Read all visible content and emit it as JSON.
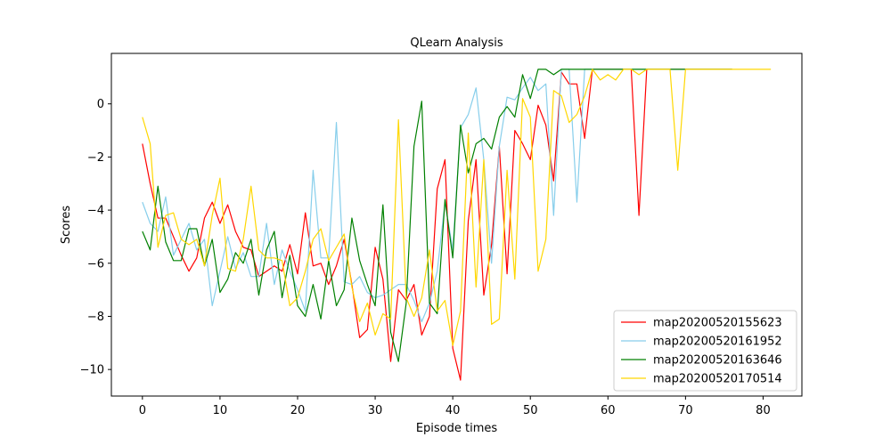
{
  "chart_data": {
    "type": "line",
    "title": "QLearn Analysis",
    "xlabel": "Episode times",
    "ylabel": "Scores",
    "xlim": [
      -4,
      85
    ],
    "ylim": [
      -11,
      1.9
    ],
    "xticks": [
      0,
      10,
      20,
      30,
      40,
      50,
      60,
      70,
      80
    ],
    "yticks": [
      -10,
      -8,
      -6,
      -4,
      -2,
      0
    ],
    "grid": false,
    "legend_position": "lower-right",
    "series": [
      {
        "name": "map20200520155623",
        "color": "#ff0000",
        "values": [
          -1.5,
          -3.0,
          -4.3,
          -4.3,
          -5.0,
          -5.7,
          -6.3,
          -5.8,
          -4.3,
          -3.7,
          -4.5,
          -3.8,
          -4.8,
          -5.4,
          -5.5,
          -6.5,
          -6.3,
          -6.1,
          -6.3,
          -5.3,
          -6.4,
          -4.1,
          -6.1,
          -6.0,
          -6.8,
          -6.1,
          -5.1,
          -6.8,
          -8.8,
          -8.5,
          -5.4,
          -6.6,
          -9.7,
          -7.0,
          -7.4,
          -6.8,
          -8.7,
          -8.0,
          -3.2,
          -2.1,
          -9.2,
          -10.4,
          -4.4,
          -2.1,
          -7.2,
          -5.3,
          -1.6,
          -6.4,
          -1.0,
          -1.5,
          -2.1,
          -0.05,
          -0.8,
          -2.9,
          1.2,
          0.75,
          0.75,
          -1.3,
          1.3,
          1.3,
          1.3,
          1.3,
          1.3,
          1.3,
          -4.2,
          1.3,
          1.3,
          1.3,
          1.3,
          1.3,
          1.3,
          1.3,
          1.3,
          1.3,
          1.3,
          1.3,
          1.3
        ]
      },
      {
        "name": "map20200520161952",
        "color": "#87ceeb",
        "values": [
          -3.7,
          -4.5,
          -4.8,
          -3.5,
          -5.7,
          -5.1,
          -4.5,
          -5.5,
          -5.1,
          -7.6,
          -6.3,
          -5.0,
          -6.2,
          -5.6,
          -6.5,
          -6.5,
          -4.5,
          -6.8,
          -5.5,
          -6.3,
          -7.0,
          -7.8,
          -2.5,
          -5.8,
          -5.8,
          -0.7,
          -6.7,
          -6.8,
          -6.5,
          -7.1,
          -7.3,
          -7.2,
          -7.0,
          -6.8,
          -6.8,
          -7.4,
          -8.2,
          -7.5,
          -6.3,
          -3.7,
          -5.5,
          -0.9,
          -0.4,
          0.6,
          -2.1,
          -6.0,
          -1.6,
          0.25,
          0.15,
          0.6,
          1.0,
          0.5,
          0.75,
          -4.2,
          1.3,
          1.3,
          -3.7,
          1.3,
          1.3,
          1.3,
          1.3,
          1.3,
          1.3,
          1.3,
          1.3,
          1.3,
          1.3,
          1.3,
          1.3,
          1.3,
          1.3,
          1.3,
          1.3,
          1.3,
          1.3,
          1.3,
          1.3
        ]
      },
      {
        "name": "map20200520163646",
        "color": "#008000",
        "values": [
          -4.8,
          -5.5,
          -3.1,
          -5.2,
          -5.9,
          -5.9,
          -4.7,
          -4.7,
          -6.1,
          -5.1,
          -7.1,
          -6.6,
          -5.6,
          -6.0,
          -5.1,
          -7.2,
          -5.5,
          -4.8,
          -7.3,
          -5.7,
          -7.6,
          -8.0,
          -6.8,
          -8.1,
          -5.9,
          -7.6,
          -7.0,
          -4.3,
          -5.9,
          -6.8,
          -7.6,
          -3.8,
          -8.6,
          -9.7,
          -7.5,
          -1.6,
          0.1,
          -7.5,
          -7.9,
          -3.6,
          -5.8,
          -0.8,
          -2.6,
          -1.5,
          -1.3,
          -1.7,
          -0.5,
          -0.1,
          -0.5,
          1.1,
          0.2,
          1.3,
          1.3,
          1.1,
          1.3,
          1.3,
          1.3,
          1.3,
          1.3,
          1.3,
          1.3,
          1.3,
          1.3,
          1.3,
          1.3,
          1.3,
          1.3,
          1.3,
          1.3,
          1.3,
          1.3,
          1.3,
          1.3,
          1.3,
          1.3,
          1.3,
          1.3
        ]
      },
      {
        "name": "map20200520170514",
        "color": "#ffd700",
        "values": [
          -0.5,
          -1.5,
          -5.4,
          -4.2,
          -4.1,
          -5.1,
          -5.3,
          -5.1,
          -6.1,
          -4.2,
          -2.8,
          -6.2,
          -6.3,
          -5.1,
          -3.1,
          -5.5,
          -5.8,
          -5.8,
          -5.9,
          -7.6,
          -7.3,
          -6.3,
          -5.1,
          -4.7,
          -5.9,
          -5.4,
          -4.9,
          -6.9,
          -8.2,
          -7.5,
          -8.7,
          -7.9,
          -8.1,
          -0.6,
          -7.3,
          -8.0,
          -7.3,
          -5.5,
          -7.8,
          -7.4,
          -9.1,
          -7.8,
          -1.1,
          -6.9,
          -2.1,
          -8.3,
          -8.1,
          -2.5,
          -6.6,
          0.2,
          -0.5,
          -6.3,
          -5.1,
          0.5,
          0.3,
          -0.7,
          -0.4,
          0.3,
          1.3,
          0.9,
          1.1,
          0.9,
          1.3,
          1.3,
          1.1,
          1.3,
          1.3,
          1.3,
          1.3,
          -2.5,
          1.3,
          1.3,
          1.3,
          1.3,
          1.3,
          1.3,
          1.3,
          1.3,
          1.3,
          1.3,
          1.3,
          1.3
        ]
      }
    ]
  }
}
